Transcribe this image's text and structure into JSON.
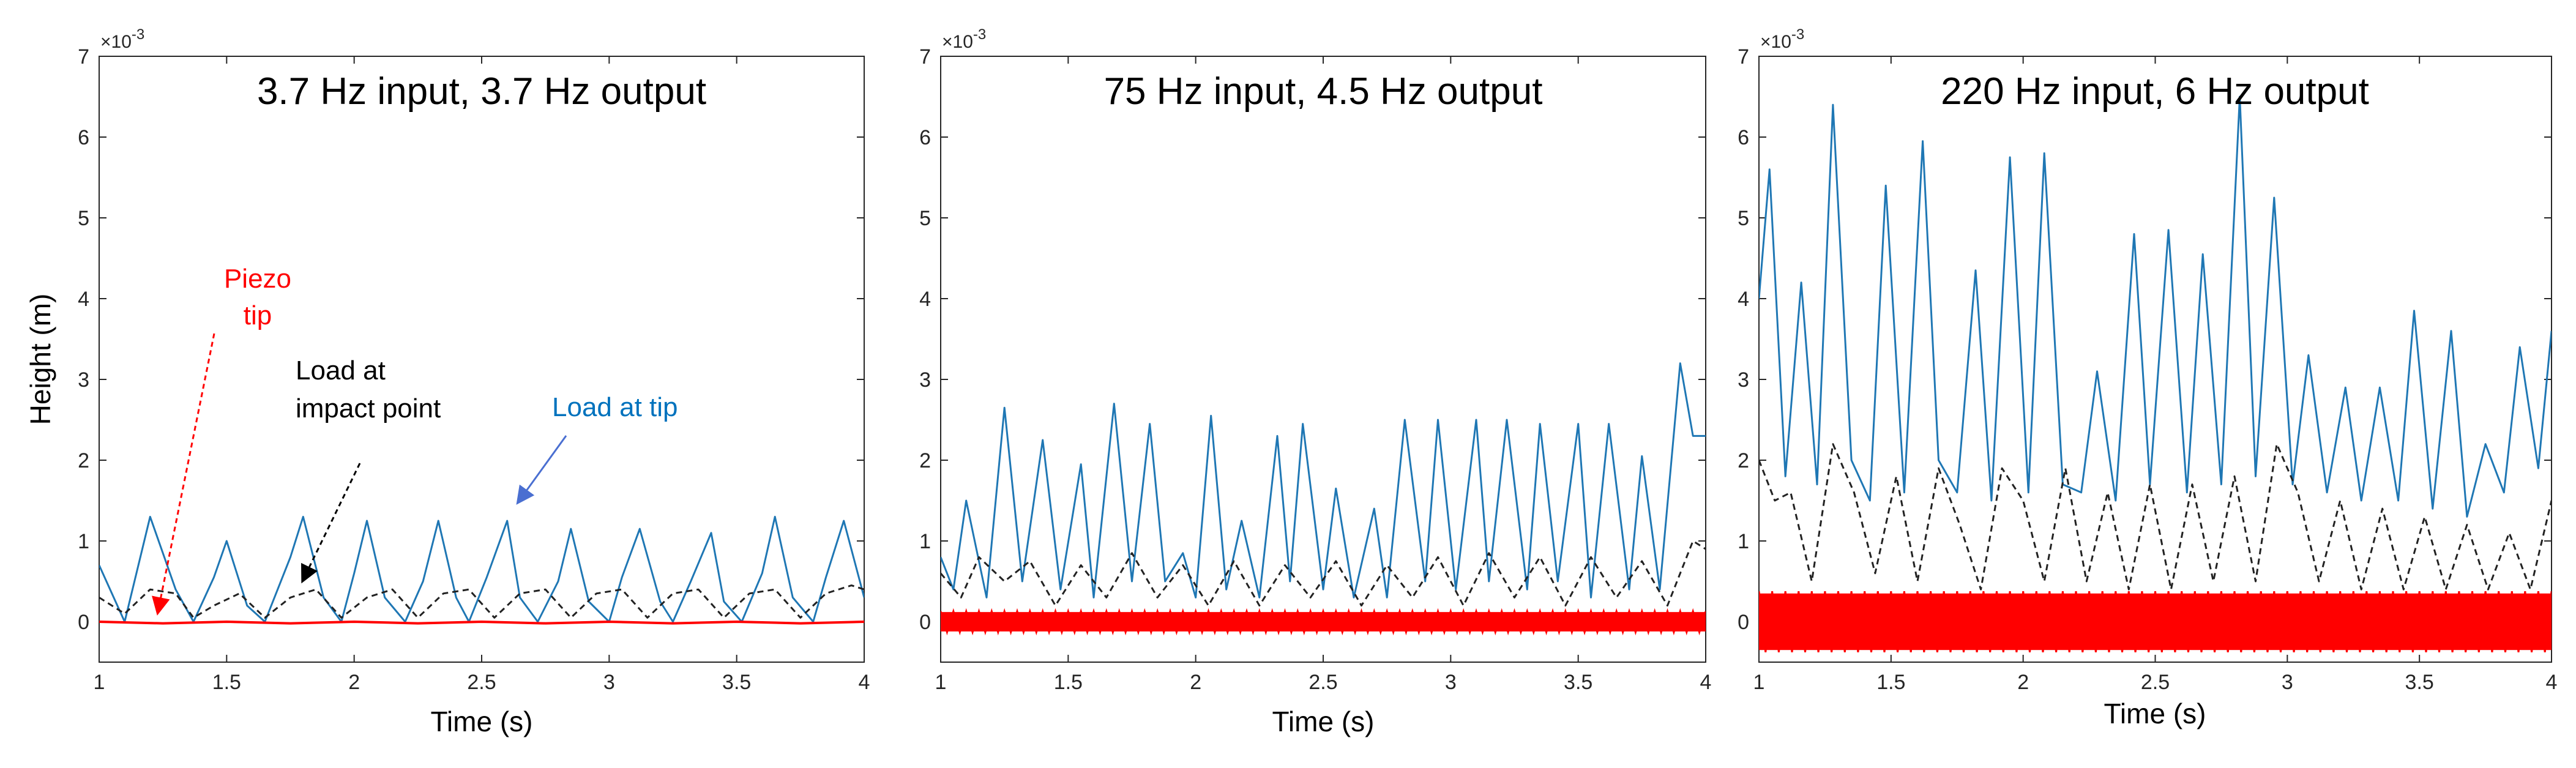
{
  "figure": {
    "ylabel": "Height (m)",
    "xlabel": "Time (s)",
    "y_exponent": "×10",
    "y_exponent_power": "-3"
  },
  "colors": {
    "blue": "#1f77b4",
    "black": "#222222",
    "red": "#ff0000",
    "axis": "#262626",
    "annot_blue": "#0072bd",
    "arrow_blue": "#4a6fd1"
  },
  "annotations": {
    "piezo_line1": "Piezo",
    "piezo_line2": "tip",
    "impact_line1": "Load at",
    "impact_line2": "impact point",
    "load_tip": "Load at tip"
  },
  "chart_data": [
    {
      "type": "line",
      "title": "3.7 Hz input, 3.7 Hz output",
      "xlabel": "Time (s)",
      "ylabel": "Height (m)",
      "xlim": [
        1,
        4
      ],
      "ylim": [
        -0.5,
        7
      ],
      "y_scale_note": "x10^-3",
      "xticks": [
        1,
        1.5,
        2,
        2.5,
        3,
        3.5,
        4
      ],
      "xtick_labels": [
        "1",
        "1.5",
        "2",
        "2.5",
        "3",
        "3.5",
        "4"
      ],
      "yticks": [
        0,
        1,
        2,
        3,
        4,
        5,
        6,
        7
      ],
      "ytick_labels": [
        "0",
        "1",
        "2",
        "3",
        "4",
        "5",
        "6",
        "7"
      ],
      "series": [
        {
          "name": "Load at tip",
          "color": "#1f77b4",
          "style": "solid",
          "x": [
            1.0,
            1.1,
            1.2,
            1.3,
            1.37,
            1.45,
            1.5,
            1.58,
            1.65,
            1.75,
            1.8,
            1.88,
            1.95,
            2.0,
            2.05,
            2.12,
            2.2,
            2.27,
            2.33,
            2.4,
            2.45,
            2.52,
            2.6,
            2.65,
            2.72,
            2.8,
            2.85,
            2.92,
            3.0,
            3.05,
            3.12,
            3.2,
            3.25,
            3.32,
            3.4,
            3.45,
            3.52,
            3.6,
            3.65,
            3.72,
            3.8,
            3.85,
            3.92,
            4.0
          ],
          "values": [
            0.7,
            0.0,
            1.3,
            0.4,
            0.0,
            0.55,
            1.0,
            0.2,
            0.0,
            0.8,
            1.3,
            0.3,
            0.0,
            0.6,
            1.25,
            0.3,
            0.0,
            0.5,
            1.25,
            0.3,
            0.0,
            0.55,
            1.25,
            0.3,
            0.0,
            0.5,
            1.15,
            0.25,
            0.0,
            0.55,
            1.15,
            0.25,
            0.0,
            0.5,
            1.1,
            0.25,
            0.0,
            0.6,
            1.3,
            0.3,
            0.0,
            0.55,
            1.25,
            0.3
          ]
        },
        {
          "name": "Load at impact point",
          "color": "#222222",
          "style": "dashed",
          "x": [
            1.0,
            1.1,
            1.2,
            1.3,
            1.37,
            1.45,
            1.55,
            1.65,
            1.75,
            1.85,
            1.95,
            2.05,
            2.15,
            2.25,
            2.35,
            2.45,
            2.55,
            2.65,
            2.75,
            2.85,
            2.95,
            3.05,
            3.15,
            3.25,
            3.35,
            3.45,
            3.55,
            3.65,
            3.75,
            3.85,
            3.95,
            4.0
          ],
          "values": [
            0.3,
            0.1,
            0.4,
            0.35,
            0.05,
            0.2,
            0.35,
            0.05,
            0.3,
            0.4,
            0.05,
            0.3,
            0.4,
            0.05,
            0.35,
            0.4,
            0.05,
            0.35,
            0.4,
            0.05,
            0.35,
            0.4,
            0.05,
            0.35,
            0.4,
            0.05,
            0.35,
            0.4,
            0.05,
            0.35,
            0.45,
            0.4
          ]
        },
        {
          "name": "Piezo tip",
          "color": "#ff0000",
          "style": "solid",
          "x": [
            1.0,
            1.25,
            1.5,
            1.75,
            2.0,
            2.25,
            2.5,
            2.75,
            3.0,
            3.25,
            3.5,
            3.75,
            4.0
          ],
          "values": [
            0.0,
            -0.02,
            0.0,
            -0.02,
            0.0,
            -0.02,
            0.0,
            -0.02,
            0.0,
            -0.02,
            0.0,
            -0.02,
            0.0
          ]
        }
      ]
    },
    {
      "type": "line",
      "title": "75 Hz input, 4.5 Hz output",
      "xlabel": "Time (s)",
      "ylabel": "",
      "xlim": [
        1,
        4
      ],
      "ylim": [
        -0.5,
        7
      ],
      "y_scale_note": "x10^-3",
      "xticks": [
        1,
        1.5,
        2,
        2.5,
        3,
        3.5,
        4
      ],
      "xtick_labels": [
        "1",
        "1.5",
        "2",
        "2.5",
        "3",
        "3.5",
        "4"
      ],
      "yticks": [
        0,
        1,
        2,
        3,
        4,
        5,
        6,
        7
      ],
      "ytick_labels": [
        "0",
        "1",
        "2",
        "3",
        "4",
        "5",
        "6",
        "7"
      ],
      "series": [
        {
          "name": "Load at tip",
          "color": "#1f77b4",
          "style": "solid",
          "x": [
            1.0,
            1.05,
            1.1,
            1.18,
            1.25,
            1.32,
            1.4,
            1.47,
            1.55,
            1.6,
            1.68,
            1.75,
            1.82,
            1.88,
            1.95,
            2.0,
            2.06,
            2.12,
            2.18,
            2.25,
            2.32,
            2.37,
            2.42,
            2.5,
            2.55,
            2.62,
            2.7,
            2.75,
            2.82,
            2.9,
            2.95,
            3.02,
            3.1,
            3.15,
            3.22,
            3.3,
            3.35,
            3.42,
            3.5,
            3.55,
            3.62,
            3.7,
            3.75,
            3.82,
            3.9,
            3.95,
            4.0
          ],
          "values": [
            0.8,
            0.4,
            1.5,
            0.3,
            2.65,
            0.5,
            2.25,
            0.4,
            1.95,
            0.3,
            2.7,
            0.5,
            2.45,
            0.5,
            0.85,
            0.3,
            2.55,
            0.4,
            1.25,
            0.3,
            2.3,
            0.5,
            2.45,
            0.4,
            1.65,
            0.3,
            1.4,
            0.3,
            2.5,
            0.5,
            2.5,
            0.4,
            2.5,
            0.5,
            2.5,
            0.4,
            2.45,
            0.5,
            2.45,
            0.3,
            2.45,
            0.4,
            2.05,
            0.4,
            3.2,
            2.3,
            2.3
          ]
        },
        {
          "name": "Load at impact point",
          "color": "#222222",
          "style": "dashed",
          "x": [
            1.0,
            1.08,
            1.15,
            1.25,
            1.35,
            1.45,
            1.55,
            1.65,
            1.75,
            1.85,
            1.95,
            2.05,
            2.15,
            2.25,
            2.35,
            2.45,
            2.55,
            2.65,
            2.75,
            2.85,
            2.95,
            3.05,
            3.15,
            3.25,
            3.35,
            3.45,
            3.55,
            3.65,
            3.75,
            3.85,
            3.95,
            4.0
          ],
          "values": [
            0.6,
            0.3,
            0.8,
            0.5,
            0.75,
            0.2,
            0.7,
            0.3,
            0.85,
            0.3,
            0.7,
            0.2,
            0.75,
            0.2,
            0.7,
            0.3,
            0.75,
            0.2,
            0.7,
            0.3,
            0.8,
            0.2,
            0.85,
            0.3,
            0.8,
            0.2,
            0.8,
            0.3,
            0.75,
            0.2,
            1.0,
            0.9
          ]
        },
        {
          "name": "Piezo tip",
          "color": "#ff0000",
          "style": "band",
          "amplitude": 0.12,
          "frequency_hz": 75,
          "x": [
            1,
            4
          ],
          "values": [
            0,
            0
          ]
        }
      ]
    },
    {
      "type": "line",
      "title": "220 Hz input, 6 Hz output",
      "xlabel": "Time (s)",
      "ylabel": "",
      "xlim": [
        1,
        4
      ],
      "ylim": [
        -0.5,
        7
      ],
      "y_scale_note": "x10^-3",
      "xticks": [
        1,
        1.5,
        2,
        2.5,
        3,
        3.5,
        4
      ],
      "xtick_labels": [
        "1",
        "1.5",
        "2",
        "2.5",
        "3",
        "3.5",
        "4"
      ],
      "yticks": [
        0,
        1,
        2,
        3,
        4,
        5,
        6,
        7
      ],
      "ytick_labels": [
        "0",
        "1",
        "2",
        "3",
        "4",
        "5",
        "6",
        "7"
      ],
      "series": [
        {
          "name": "Load at tip",
          "color": "#1f77b4",
          "style": "solid",
          "x": [
            1.0,
            1.04,
            1.1,
            1.16,
            1.22,
            1.28,
            1.35,
            1.42,
            1.48,
            1.55,
            1.62,
            1.68,
            1.75,
            1.82,
            1.88,
            1.95,
            2.02,
            2.08,
            2.15,
            2.22,
            2.28,
            2.35,
            2.42,
            2.48,
            2.55,
            2.62,
            2.68,
            2.75,
            2.82,
            2.88,
            2.95,
            3.02,
            3.08,
            3.15,
            3.22,
            3.28,
            3.35,
            3.42,
            3.48,
            3.55,
            3.62,
            3.68,
            3.75,
            3.82,
            3.88,
            3.95,
            4.0
          ],
          "values": [
            4.0,
            5.6,
            1.8,
            4.2,
            1.7,
            6.4,
            2.0,
            1.5,
            5.4,
            1.6,
            5.95,
            2.0,
            1.6,
            4.35,
            1.5,
            5.75,
            1.6,
            5.8,
            1.7,
            1.6,
            3.1,
            1.5,
            4.8,
            1.7,
            4.85,
            1.6,
            4.55,
            1.7,
            6.5,
            1.8,
            5.25,
            1.7,
            3.3,
            1.6,
            2.9,
            1.5,
            2.9,
            1.5,
            3.85,
            1.4,
            3.6,
            1.3,
            2.2,
            1.6,
            3.4,
            1.9,
            3.6
          ]
        },
        {
          "name": "Load at impact point",
          "color": "#222222",
          "style": "dashed",
          "x": [
            1.0,
            1.06,
            1.12,
            1.2,
            1.28,
            1.36,
            1.44,
            1.52,
            1.6,
            1.68,
            1.76,
            1.84,
            1.92,
            2.0,
            2.08,
            2.16,
            2.24,
            2.32,
            2.4,
            2.48,
            2.56,
            2.64,
            2.72,
            2.8,
            2.88,
            2.96,
            3.04,
            3.12,
            3.2,
            3.28,
            3.36,
            3.44,
            3.52,
            3.6,
            3.68,
            3.76,
            3.84,
            3.92,
            4.0
          ],
          "values": [
            2.0,
            1.5,
            1.6,
            0.5,
            2.2,
            1.6,
            0.6,
            1.8,
            0.5,
            1.9,
            1.2,
            0.4,
            1.9,
            1.5,
            0.5,
            1.9,
            0.5,
            1.6,
            0.4,
            1.7,
            0.4,
            1.7,
            0.5,
            1.8,
            0.5,
            2.2,
            1.6,
            0.5,
            1.5,
            0.4,
            1.4,
            0.4,
            1.3,
            0.4,
            1.2,
            0.4,
            1.1,
            0.4,
            1.5
          ]
        },
        {
          "name": "Piezo tip",
          "color": "#ff0000",
          "style": "band",
          "amplitude": 0.35,
          "frequency_hz": 220,
          "x": [
            1,
            4
          ],
          "values": [
            0,
            0
          ]
        }
      ]
    }
  ]
}
